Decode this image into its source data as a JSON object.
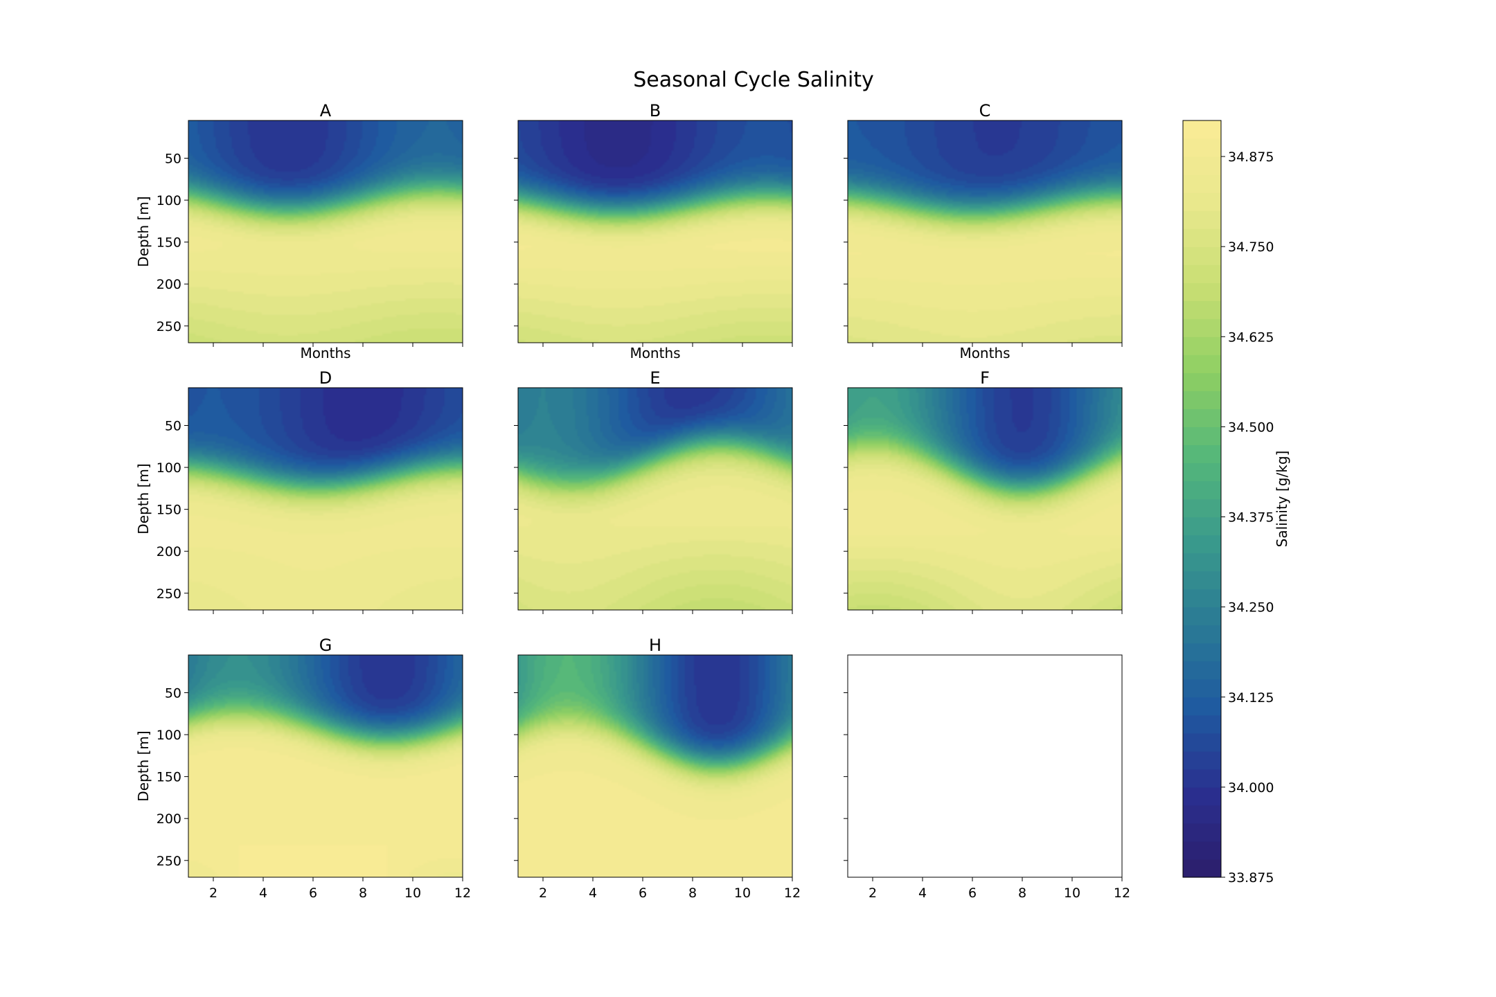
{
  "figure": {
    "title": "Seasonal Cycle Salinity"
  },
  "chart_data": {
    "type": "heatmap",
    "title": "Seasonal Cycle Salinity",
    "xlabel": "Months",
    "ylabel": "Depth [m]",
    "x_ticks": [
      2,
      4,
      6,
      8,
      10,
      12
    ],
    "xlim": [
      1,
      12
    ],
    "y_ticks": [
      50,
      100,
      150,
      200,
      250
    ],
    "ylim": [
      5,
      270
    ],
    "y_inverted": true,
    "grid": false,
    "colorbar": {
      "label": "Salinity [g/kg]",
      "range": [
        33.875,
        34.925
      ],
      "ticks": [
        33.875,
        34.0,
        34.125,
        34.25,
        34.375,
        34.5,
        34.625,
        34.75,
        34.875
      ],
      "tick_labels": [
        "33.875",
        "34.000",
        "34.125",
        "34.250",
        "34.375",
        "34.500",
        "34.625",
        "34.750",
        "34.875"
      ],
      "levels": 42,
      "colormap": [
        "#2c1e6b",
        "#2a2f8f",
        "#1f5aa0",
        "#2a7a95",
        "#3a9a8c",
        "#55b77a",
        "#8ecf63",
        "#c7de73",
        "#e8e88c",
        "#faeb96"
      ]
    },
    "panels": [
      {
        "label": "A",
        "has_data": true,
        "show_xlabel": true,
        "show_ylabel": true,
        "show_ytick_labels": true,
        "show_xtick_labels": false,
        "min_month": 5,
        "surface_min": 34.0,
        "surface_amp": 0.15,
        "thermocline_depth": 100,
        "thermocline_amp": 12,
        "thermocline_phase": 5,
        "core_value": 34.87,
        "core_depth": 150,
        "deep_value": 34.72,
        "deep_amp": 0.02,
        "deep_phase": 5
      },
      {
        "label": "B",
        "has_data": true,
        "show_xlabel": true,
        "show_ylabel": false,
        "show_ytick_labels": false,
        "show_xtick_labels": false,
        "min_month": 5,
        "surface_min": 33.96,
        "surface_amp": 0.12,
        "thermocline_depth": 105,
        "thermocline_amp": 10,
        "thermocline_phase": 5,
        "core_value": 34.89,
        "core_depth": 155,
        "deep_value": 34.73,
        "deep_amp": 0.02,
        "deep_phase": 5
      },
      {
        "label": "C",
        "has_data": true,
        "show_xlabel": true,
        "show_ylabel": false,
        "show_ytick_labels": false,
        "show_xtick_labels": false,
        "min_month": 7,
        "surface_min": 34.02,
        "surface_amp": 0.08,
        "thermocline_depth": 105,
        "thermocline_amp": 10,
        "thermocline_phase": 6,
        "core_value": 34.88,
        "core_depth": 165,
        "deep_value": 34.78,
        "deep_amp": 0.015,
        "deep_phase": 6
      },
      {
        "label": "D",
        "has_data": true,
        "show_xlabel": false,
        "show_ylabel": true,
        "show_ytick_labels": true,
        "show_xtick_labels": false,
        "min_month": 8,
        "surface_min": 33.98,
        "surface_amp": 0.12,
        "thermocline_depth": 110,
        "thermocline_amp": 12,
        "thermocline_phase": 6,
        "core_value": 34.86,
        "core_depth": 180,
        "deep_value": 34.82,
        "deep_amp": 0.02,
        "deep_phase": 6
      },
      {
        "label": "E",
        "has_data": true,
        "show_xlabel": false,
        "show_ylabel": false,
        "show_ytick_labels": false,
        "show_xtick_labels": false,
        "min_month": 8,
        "surface_min": 34.0,
        "surface_amp": 0.25,
        "thermocline_depth": 95,
        "thermocline_amp": 25,
        "thermocline_phase": 3,
        "core_value": 34.84,
        "core_depth": 160,
        "deep_value": 34.72,
        "deep_amp": 0.04,
        "deep_phase": 3
      },
      {
        "label": "F",
        "has_data": true,
        "show_xlabel": false,
        "show_ylabel": false,
        "show_ytick_labels": false,
        "show_xtick_labels": false,
        "min_month": 8,
        "surface_min": 34.02,
        "surface_amp": 0.35,
        "thermocline_depth": 100,
        "thermocline_amp": 25,
        "thermocline_phase": 8,
        "core_value": 34.86,
        "core_depth": 175,
        "deep_value": 34.74,
        "deep_amp": 0.05,
        "deep_phase": 8
      },
      {
        "label": "G",
        "has_data": true,
        "show_xlabel": false,
        "show_ylabel": true,
        "show_ytick_labels": true,
        "show_xtick_labels": true,
        "min_month": 9,
        "surface_min": 34.0,
        "surface_amp": 0.3,
        "thermocline_depth": 90,
        "thermocline_amp": 15,
        "thermocline_phase": 9,
        "core_value": 34.9,
        "core_depth": 230,
        "deep_value": 34.9,
        "deep_amp": 0.06,
        "deep_phase": 6
      },
      {
        "label": "H",
        "has_data": true,
        "show_xlabel": false,
        "show_ylabel": false,
        "show_ytick_labels": false,
        "show_xtick_labels": true,
        "min_month": 9,
        "surface_min": 34.0,
        "surface_amp": 0.45,
        "thermocline_depth": 110,
        "thermocline_amp": 25,
        "thermocline_phase": 9,
        "core_value": 34.88,
        "core_depth": 270,
        "deep_value": 34.88,
        "deep_amp": 0.03,
        "deep_phase": 9
      },
      {
        "label": "",
        "has_data": false,
        "show_xlabel": false,
        "show_ylabel": false,
        "show_ytick_labels": false,
        "show_xtick_labels": true
      }
    ]
  }
}
